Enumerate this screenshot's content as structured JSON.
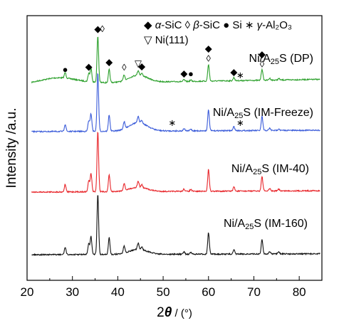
{
  "chart_data": {
    "type": "line",
    "title": "",
    "xlabel": "2θ / (°)",
    "xlabel_parts": {
      "two": "2",
      "theta": "θ",
      "unit": " / (°)"
    },
    "ylabel": "Intensity /a.u.",
    "xlim": [
      20,
      85
    ],
    "x_ticks": [
      20,
      30,
      40,
      50,
      60,
      70,
      80
    ],
    "y_ticks_shown": false,
    "grid": false,
    "legend": {
      "placement": "top-right",
      "entries": [
        {
          "symbol": "◆",
          "greek": "α",
          "rest": "-SiC"
        },
        {
          "symbol": "◊",
          "greek": "β",
          "rest": "-SiC"
        },
        {
          "symbol": "●",
          "greek": "",
          "rest": "Si"
        },
        {
          "symbol": "∗",
          "greek": "γ",
          "rest": "-Al₂O₃"
        },
        {
          "symbol": "▽",
          "greek": "",
          "rest": "Ni(111)"
        }
      ]
    },
    "colors": {
      "DP": "#2ca02c",
      "IM-Freeze": "#3a5bd9",
      "IM-40": "#e8262b",
      "IM-160": "#111111"
    },
    "peaks": [
      {
        "x": 28.4,
        "rel": 0.12
      },
      {
        "x": 33.6,
        "rel": 0.18
      },
      {
        "x": 34.1,
        "rel": 0.3
      },
      {
        "x": 35.6,
        "rel": 1.0
      },
      {
        "x": 38.1,
        "rel": 0.28
      },
      {
        "x": 41.4,
        "rel": 0.12
      },
      {
        "x": 44.5,
        "rel": 0.1
      },
      {
        "x": 45.3,
        "rel": 0.05
      },
      {
        "x": 54.6,
        "rel": 0.04
      },
      {
        "x": 56.1,
        "rel": 0.03
      },
      {
        "x": 60.0,
        "rel": 0.36
      },
      {
        "x": 65.6,
        "rel": 0.07
      },
      {
        "x": 71.8,
        "rel": 0.24
      },
      {
        "x": 73.5,
        "rel": 0.04
      },
      {
        "x": 75.5,
        "rel": 0.03
      }
    ],
    "series": [
      {
        "name": "Ni/A₂₅S (DP)",
        "key": "DP",
        "label_main": "Ni/A",
        "label_sub": "25",
        "label_rest": "S (DP)",
        "markers": [
          {
            "symbol": "●",
            "x": 28.4
          },
          {
            "symbol": "◆",
            "x": 33.6
          },
          {
            "symbol": "◆",
            "x": 35.6
          },
          {
            "symbol": "◊",
            "x": 36.1
          },
          {
            "symbol": "◆",
            "x": 38.1
          },
          {
            "symbol": "◊",
            "x": 41.4
          },
          {
            "symbol": "▽",
            "x": 44.5
          },
          {
            "symbol": "◆",
            "x": 45.3
          },
          {
            "symbol": "◆",
            "x": 54.6
          },
          {
            "symbol": "●",
            "x": 56.1
          },
          {
            "symbol": "◊",
            "x": 60.0
          },
          {
            "symbol": "◆",
            "x": 60.0
          },
          {
            "symbol": "◆",
            "x": 65.6
          },
          {
            "symbol": "∗",
            "x": 67.0
          },
          {
            "symbol": "◊",
            "x": 71.8
          },
          {
            "symbol": "◆",
            "x": 71.8
          }
        ]
      },
      {
        "name": "Ni/A₂₅S (IM-Freeze)",
        "key": "IM-Freeze",
        "label_main": "Ni/A",
        "label_sub": "25",
        "label_rest": "S (IM-Freeze)",
        "markers": [
          {
            "symbol": "∗",
            "x": 52.0
          },
          {
            "symbol": "∗",
            "x": 67.0
          }
        ]
      },
      {
        "name": "Ni/A₂₅S (IM-40)",
        "key": "IM-40",
        "label_main": "Ni/A",
        "label_sub": "25",
        "label_rest": "S (IM-40)",
        "markers": []
      },
      {
        "name": "Ni/A₂₅S (IM-160)",
        "key": "IM-160",
        "label_main": "Ni/A",
        "label_sub": "25",
        "label_rest": "S (IM-160)",
        "markers": []
      }
    ]
  }
}
